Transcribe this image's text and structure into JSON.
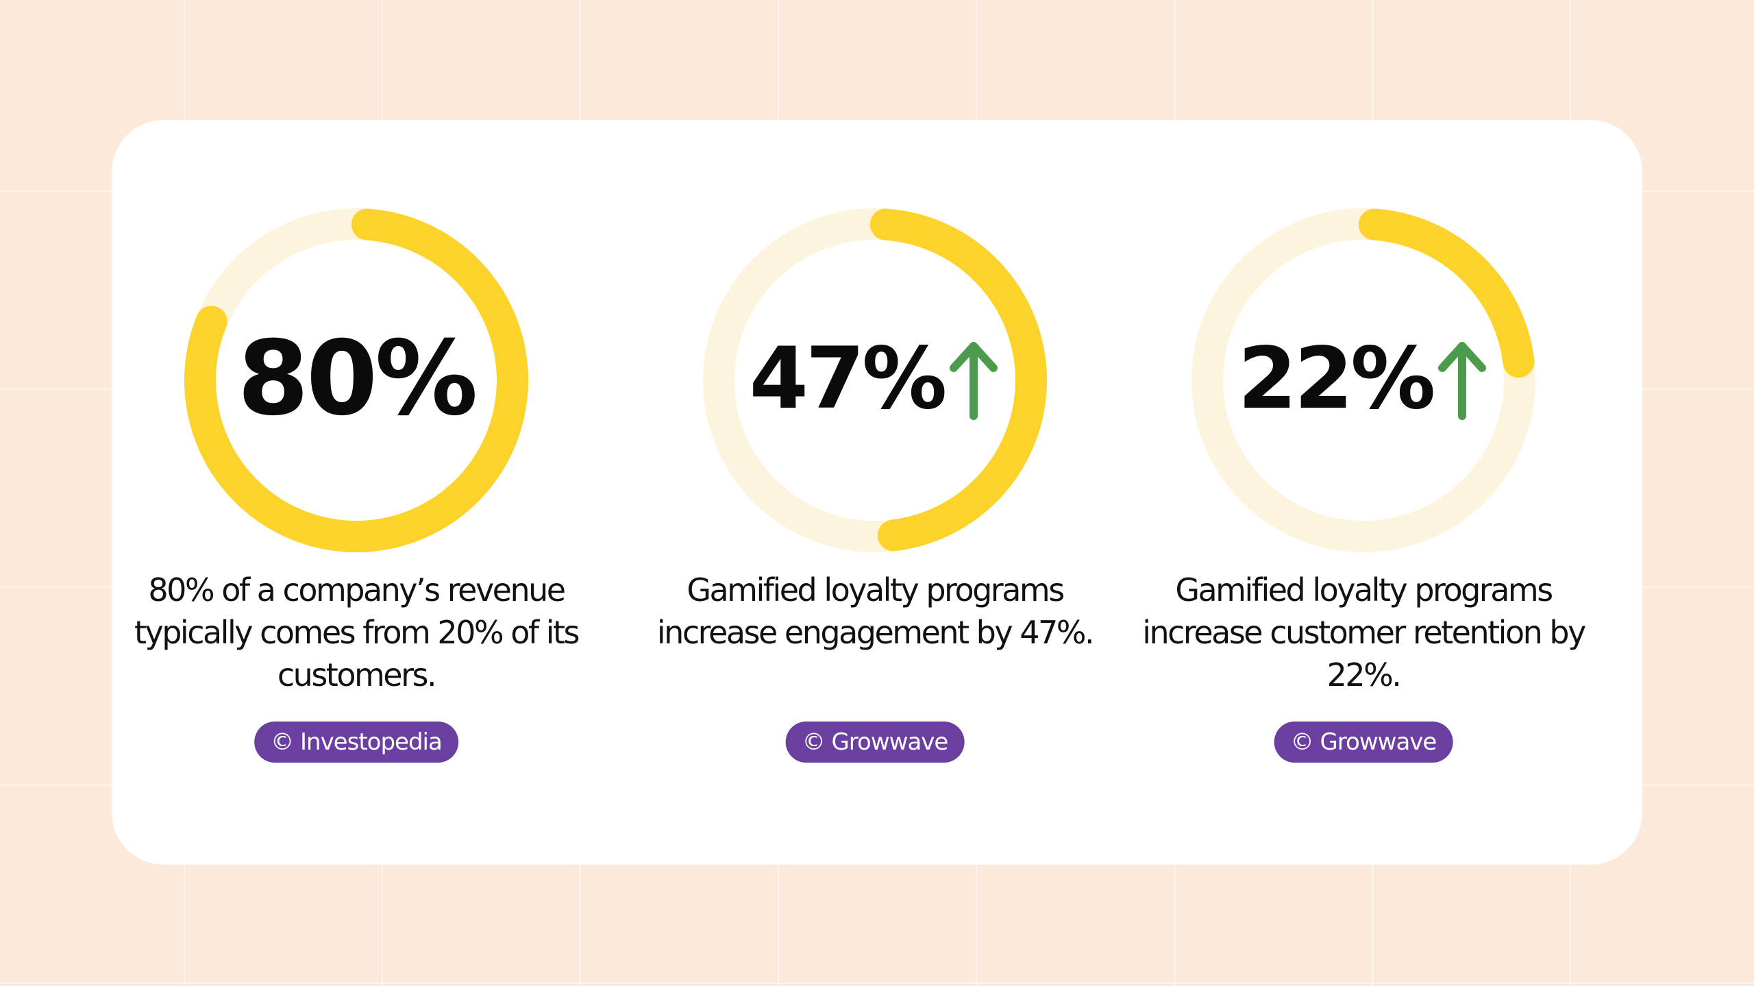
{
  "colors": {
    "background": "#fde9d9",
    "card": "#ffffff",
    "ring_track": "#fcf4dc",
    "ring_fill": "#fcd32a",
    "arrow": "#4c9a4c",
    "badge": "#6b3fa0"
  },
  "chart_data": [
    {
      "type": "donut",
      "value": 80,
      "max": 100,
      "label": "80%",
      "trend_icon": "",
      "description": "80% of a company’s revenue typically comes from 20% of its customers.",
      "source": "© Investopedia"
    },
    {
      "type": "donut",
      "value": 47,
      "max": 100,
      "label": "47%",
      "trend_icon": "arrow-up-icon",
      "description": "Gamified loyalty programs increase engagement by 47%.",
      "source": "© Growwave"
    },
    {
      "type": "donut",
      "value": 22,
      "max": 100,
      "label": "22%",
      "trend_icon": "arrow-up-icon",
      "description": "Gamified loyalty programs increase customer retention by 22%.",
      "source": "© Growwave"
    }
  ]
}
